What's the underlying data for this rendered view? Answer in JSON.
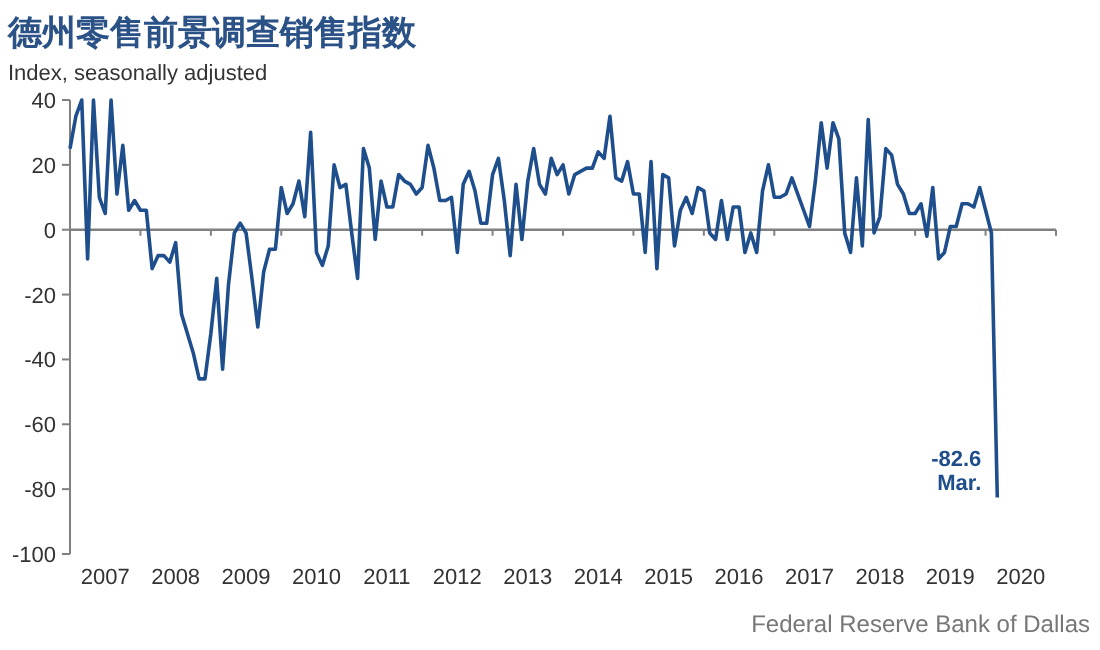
{
  "chart_data": {
    "type": "line",
    "title": "德州零售前景调查销售指数",
    "ylabel": "Index, seasonally adjusted",
    "xlim": [
      "2007-01",
      "2021-01"
    ],
    "xticks": [
      {
        "value": "2007-07",
        "label": "2007"
      },
      {
        "value": "2008-07",
        "label": "2008"
      },
      {
        "value": "2009-07",
        "label": "2009"
      },
      {
        "value": "2010-07",
        "label": "2010"
      },
      {
        "value": "2011-07",
        "label": "2011"
      },
      {
        "value": "2012-07",
        "label": "2012"
      },
      {
        "value": "2013-07",
        "label": "2013"
      },
      {
        "value": "2014-07",
        "label": "2014"
      },
      {
        "value": "2015-07",
        "label": "2015"
      },
      {
        "value": "2016-07",
        "label": "2016"
      },
      {
        "value": "2017-07",
        "label": "2017"
      },
      {
        "value": "2018-07",
        "label": "2018"
      },
      {
        "value": "2019-07",
        "label": "2019"
      },
      {
        "value": "2020-07",
        "label": "2020"
      },
      {
        "value": "2008-01",
        "label": null
      },
      {
        "value": "2009-01",
        "label": null
      },
      {
        "value": "2010-01",
        "label": null
      },
      {
        "value": "2011-01",
        "label": null
      },
      {
        "value": "2012-01",
        "label": null
      },
      {
        "value": "2013-01",
        "label": null
      },
      {
        "value": "2014-01",
        "label": null
      },
      {
        "value": "2015-01",
        "label": null
      },
      {
        "value": "2016-01",
        "label": null
      },
      {
        "value": "2017-01",
        "label": null
      },
      {
        "value": "2018-01",
        "label": null
      },
      {
        "value": "2019-01",
        "label": null
      },
      {
        "value": "2020-01",
        "label": null
      },
      {
        "value": "2021-01",
        "label": null
      }
    ],
    "ylim": [
      -100,
      40
    ],
    "yticks": [
      -100,
      -80,
      -60,
      -40,
      -20,
      0,
      20,
      40
    ],
    "ref_lines": [
      {
        "axis": "y",
        "value": 0,
        "color": "#808080"
      }
    ],
    "x": [
      "2007-01",
      "2007-02",
      "2007-03",
      "2007-04",
      "2007-05",
      "2007-06",
      "2007-07",
      "2007-08",
      "2007-09",
      "2007-10",
      "2007-11",
      "2007-12",
      "2008-01",
      "2008-02",
      "2008-03",
      "2008-04",
      "2008-05",
      "2008-06",
      "2008-07",
      "2008-08",
      "2008-09",
      "2008-10",
      "2008-11",
      "2008-12",
      "2009-01",
      "2009-02",
      "2009-03",
      "2009-04",
      "2009-05",
      "2009-06",
      "2009-07",
      "2009-08",
      "2009-09",
      "2009-10",
      "2009-11",
      "2009-12",
      "2010-01",
      "2010-02",
      "2010-03",
      "2010-04",
      "2010-05",
      "2010-06",
      "2010-07",
      "2010-08",
      "2010-09",
      "2010-10",
      "2010-11",
      "2010-12",
      "2011-01",
      "2011-02",
      "2011-03",
      "2011-04",
      "2011-05",
      "2011-06",
      "2011-07",
      "2011-08",
      "2011-09",
      "2011-10",
      "2011-11",
      "2011-12",
      "2012-01",
      "2012-02",
      "2012-03",
      "2012-04",
      "2012-05",
      "2012-06",
      "2012-07",
      "2012-08",
      "2012-09",
      "2012-10",
      "2012-11",
      "2012-12",
      "2013-01",
      "2013-02",
      "2013-03",
      "2013-04",
      "2013-05",
      "2013-06",
      "2013-07",
      "2013-08",
      "2013-09",
      "2013-10",
      "2013-11",
      "2013-12",
      "2014-01",
      "2014-02",
      "2014-03",
      "2014-04",
      "2014-05",
      "2014-06",
      "2014-07",
      "2014-08",
      "2014-09",
      "2014-10",
      "2014-11",
      "2014-12",
      "2015-01",
      "2015-02",
      "2015-03",
      "2015-04",
      "2015-05",
      "2015-06",
      "2015-07",
      "2015-08",
      "2015-09",
      "2015-10",
      "2015-11",
      "2015-12",
      "2016-01",
      "2016-02",
      "2016-03",
      "2016-04",
      "2016-05",
      "2016-06",
      "2016-07",
      "2016-08",
      "2016-09",
      "2016-10",
      "2016-11",
      "2016-12",
      "2017-01",
      "2017-02",
      "2017-03",
      "2017-04",
      "2017-05",
      "2017-06",
      "2017-07",
      "2017-08",
      "2017-09",
      "2017-10",
      "2017-11",
      "2017-12",
      "2018-01",
      "2018-02",
      "2018-03",
      "2018-04",
      "2018-05",
      "2018-06",
      "2018-07",
      "2018-08",
      "2018-09",
      "2018-10",
      "2018-11",
      "2018-12",
      "2019-01",
      "2019-02",
      "2019-03",
      "2019-04",
      "2019-05",
      "2019-06",
      "2019-07",
      "2019-08",
      "2019-09",
      "2019-10",
      "2019-11",
      "2019-12",
      "2020-01",
      "2020-02",
      "2020-03"
    ],
    "series": [
      {
        "color": "#1f4e8c",
        "values": [
          25,
          35,
          40,
          -9,
          40,
          10,
          5,
          40,
          11,
          26,
          6,
          9,
          6,
          6,
          -12,
          -8,
          -8,
          -10,
          -4,
          -26,
          -32,
          -38,
          -46,
          -46,
          -32,
          -15,
          -43,
          -17,
          -1,
          2,
          -1,
          -15,
          -30,
          -13,
          -6,
          -6,
          13,
          5,
          8,
          15,
          4,
          30,
          -7,
          -11,
          -5,
          20,
          13,
          14,
          -1,
          -15,
          25,
          19,
          -3,
          15,
          7,
          7,
          17,
          15,
          14,
          11,
          13,
          26,
          19,
          9,
          9,
          10,
          -7,
          14,
          18,
          12,
          2,
          2,
          17,
          22,
          9,
          -8,
          14,
          -3,
          15,
          25,
          14,
          11,
          22,
          17,
          20,
          11,
          17,
          18,
          19,
          19,
          24,
          22,
          35,
          16,
          15,
          21,
          11,
          11,
          -7,
          21,
          -12,
          17,
          16,
          -5,
          6,
          10,
          5,
          13,
          12,
          -1,
          -3,
          9,
          -3,
          7,
          7,
          -7,
          -1,
          -7,
          12,
          20,
          10,
          10,
          11,
          16,
          11,
          6,
          1,
          15,
          33,
          19,
          33,
          28,
          -1,
          -7,
          16,
          -5,
          34,
          -1,
          4,
          25,
          23,
          14,
          11,
          5,
          5,
          8,
          -2,
          13,
          -9,
          -7,
          1,
          1,
          8,
          8,
          7,
          13,
          6,
          -1,
          -82.6
        ]
      }
    ],
    "annotations": [
      {
        "text": "-82.6",
        "x": "2020-03",
        "y": -82.6
      },
      {
        "text": "Mar.",
        "x": "2020-03",
        "y": -82.6
      },
      "Federal Reserve Bank of Dallas"
    ]
  }
}
